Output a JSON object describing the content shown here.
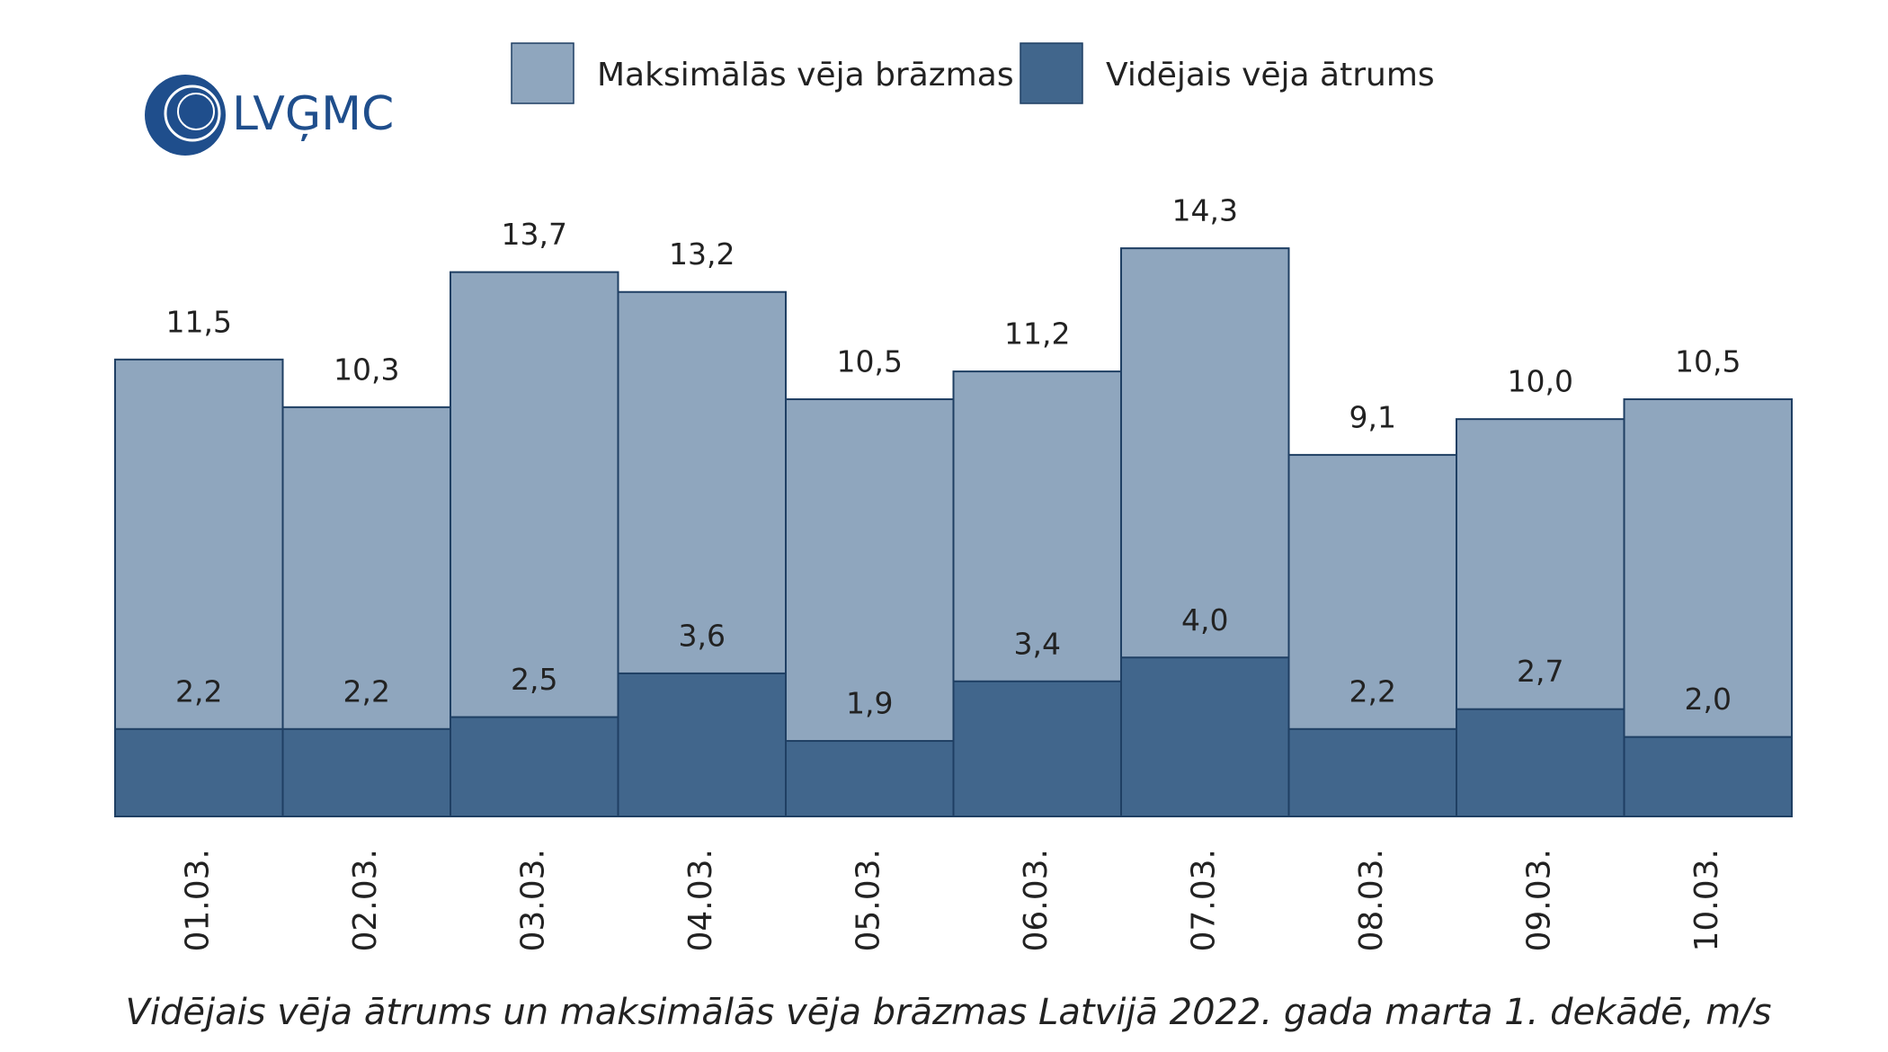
{
  "logo": "LVĢMC",
  "chart_data": {
    "type": "bar",
    "title": "Vidējais vēja ātrums un maksimālās vēja brāzmas Latvijā 2022. gada marta 1. dekādē, m/s",
    "categories": [
      "01.03.",
      "02.03.",
      "03.03.",
      "04.03.",
      "05.03.",
      "06.03.",
      "07.03.",
      "08.03.",
      "09.03.",
      "10.03."
    ],
    "series": [
      {
        "name": "Maksimālās vēja brāzmas",
        "color": "#8fa6be",
        "values": [
          11.5,
          10.3,
          13.7,
          13.2,
          10.5,
          11.2,
          14.3,
          9.1,
          10.0,
          10.5
        ],
        "value_labels": [
          "11,5",
          "10,3",
          "13,7",
          "13,2",
          "10,5",
          "11,2",
          "14,3",
          "9,1",
          "10,0",
          "10,5"
        ]
      },
      {
        "name": "Vidējais vēja ātrums",
        "color": "#41668c",
        "values": [
          2.2,
          2.2,
          2.5,
          3.6,
          1.9,
          3.4,
          4.0,
          2.2,
          2.7,
          2.0
        ],
        "value_labels": [
          "2,2",
          "2,2",
          "2,5",
          "3,6",
          "1,9",
          "3,4",
          "4,0",
          "2,2",
          "2,7",
          "2,0"
        ]
      }
    ],
    "ylim": [
      0,
      16
    ]
  }
}
